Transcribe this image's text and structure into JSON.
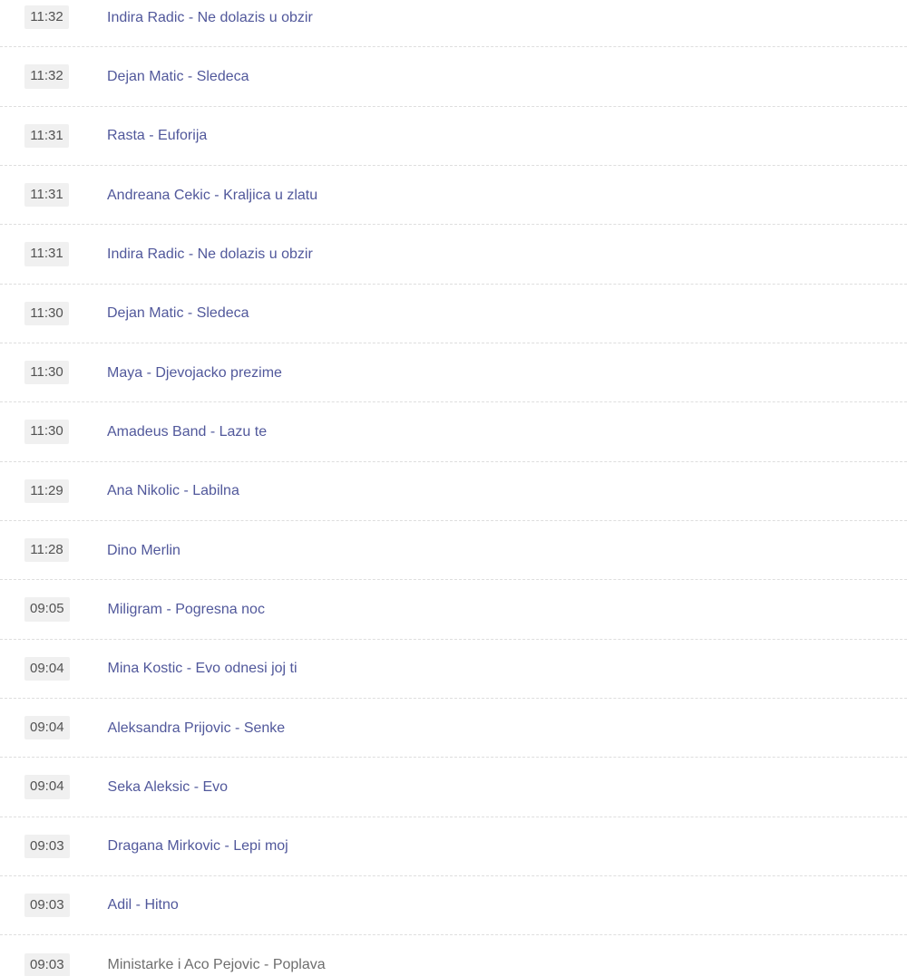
{
  "playlist": {
    "rows": [
      {
        "time": "11:32",
        "title": "Indira Radic - Ne dolazis u obzir"
      },
      {
        "time": "11:32",
        "title": "Dejan Matic - Sledeca"
      },
      {
        "time": "11:31",
        "title": "Rasta - Euforija"
      },
      {
        "time": "11:31",
        "title": "Andreana Cekic - Kraljica u zlatu"
      },
      {
        "time": "11:31",
        "title": "Indira Radic - Ne dolazis u obzir"
      },
      {
        "time": "11:30",
        "title": "Dejan Matic - Sledeca"
      },
      {
        "time": "11:30",
        "title": "Maya - Djevojacko prezime"
      },
      {
        "time": "11:30",
        "title": "Amadeus Band - Lazu te"
      },
      {
        "time": "11:29",
        "title": "Ana Nikolic - Labilna"
      },
      {
        "time": "11:28",
        "title": "Dino Merlin"
      },
      {
        "time": "09:05",
        "title": "Miligram - Pogresna noc"
      },
      {
        "time": "09:04",
        "title": "Mina Kostic - Evo odnesi joj ti"
      },
      {
        "time": "09:04",
        "title": "Aleksandra Prijovic - Senke"
      },
      {
        "time": "09:04",
        "title": "Seka Aleksic - Evo"
      },
      {
        "time": "09:03",
        "title": "Dragana Mirkovic - Lepi moj"
      },
      {
        "time": "09:03",
        "title": "Adil - Hitno"
      },
      {
        "time": "09:03",
        "title": "Ministarke i Aco Pejovic - Poplava",
        "muted": true
      }
    ]
  },
  "colors": {
    "title_link": "#51589b",
    "title_muted": "#6e6e6e",
    "badge_background": "#f0f0f0",
    "badge_text": "#525252",
    "divider": "#dedede"
  }
}
